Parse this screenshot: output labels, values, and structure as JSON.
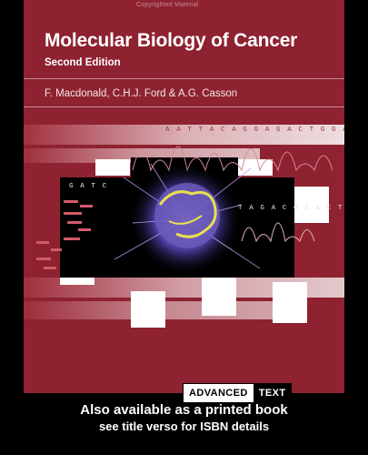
{
  "cover": {
    "watermark": "Copyrighted Material",
    "title": "Molecular Biology of Cancer",
    "edition": "Second Edition",
    "authors": "F. Macdonald, C.H.J. Ford & A.G. Casson",
    "sequence_top": "A A T T A C A G G A G A C T G G A C A T",
    "sequence_mid": "T A G A C G G A C T C",
    "sequence_left": "G A T C",
    "series_badge": {
      "part1": "ADVANCED",
      "part2": "TEXT"
    }
  },
  "footer": {
    "line1": "Also available as a printed book",
    "line2": "see title verso for ISBN details"
  },
  "colors": {
    "cover_red": "#8e2230",
    "background": "#000000"
  }
}
